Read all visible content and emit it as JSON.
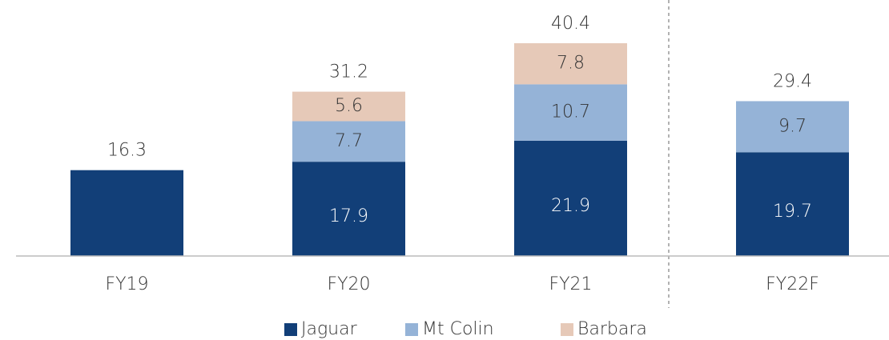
{
  "chart_data": {
    "type": "stacked_bar",
    "categories": [
      "FY19",
      "FY20",
      "FY21",
      "FY22F"
    ],
    "series": [
      {
        "name": "Jaguar",
        "color": "#123f78",
        "values": [
          16.3,
          17.9,
          21.9,
          19.7
        ]
      },
      {
        "name": "Mt Colin",
        "color": "#95b3d7",
        "values": [
          null,
          7.7,
          10.7,
          9.7
        ]
      },
      {
        "name": "Barbara",
        "color": "#e6c9b8",
        "values": [
          null,
          5.6,
          7.8,
          null
        ]
      }
    ],
    "totals": [
      16.3,
      31.2,
      40.4,
      29.4
    ],
    "ylim": [
      0,
      48
    ]
  }
}
